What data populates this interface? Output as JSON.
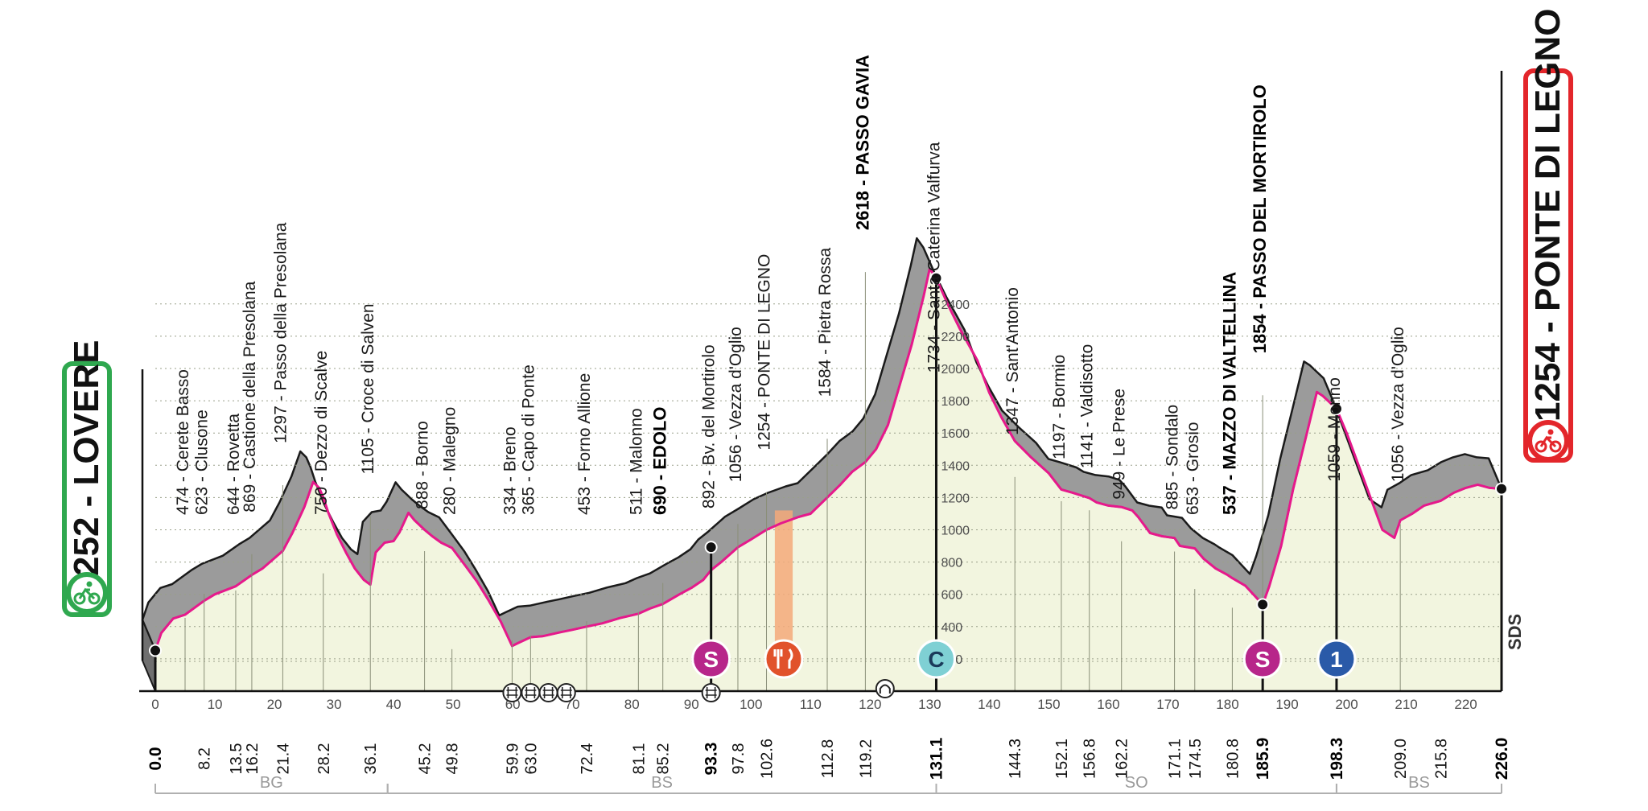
{
  "start": {
    "altitude": "252",
    "name": "LOVERE",
    "color": "#2fa84f"
  },
  "finish": {
    "altitude": "1254",
    "name": "PONTE DI LEGNO",
    "color": "#e3262b"
  },
  "colors": {
    "profile_top": "#9b9b9b",
    "terrain": "#f2f5df",
    "route_line": "#e6198c",
    "sprint": "#b7268a",
    "feed_zone": "#f5a97a",
    "feed_icon": "#e1522b",
    "climb_c": "#7fd0d4",
    "climb_1": "#2a5aa8"
  },
  "chart_data": {
    "type": "area",
    "x_unit": "km",
    "y_unit": "m",
    "xlim": [
      0,
      226
    ],
    "ylim": [
      0,
      2618
    ],
    "x_ticks": [
      0,
      10,
      20,
      30,
      40,
      50,
      60,
      70,
      80,
      90,
      100,
      110,
      120,
      130,
      140,
      150,
      160,
      170,
      180,
      190,
      200,
      210,
      220
    ],
    "y_ticks": [
      200,
      400,
      600,
      800,
      1000,
      1200,
      1400,
      1600,
      1800,
      2000,
      2200,
      2400
    ],
    "profile": [
      [
        0,
        252
      ],
      [
        1,
        360
      ],
      [
        3,
        450
      ],
      [
        5,
        474
      ],
      [
        8.2,
        560
      ],
      [
        10,
        600
      ],
      [
        13.5,
        650
      ],
      [
        16.2,
        720
      ],
      [
        18,
        760
      ],
      [
        21.4,
        869
      ],
      [
        23,
        980
      ],
      [
        25,
        1140
      ],
      [
        26.5,
        1297
      ],
      [
        27.5,
        1260
      ],
      [
        28.2,
        1200
      ],
      [
        29,
        1110
      ],
      [
        30.5,
        970
      ],
      [
        32,
        860
      ],
      [
        33.5,
        760
      ],
      [
        35,
        690
      ],
      [
        36.1,
        660
      ],
      [
        37,
        860
      ],
      [
        38.5,
        920
      ],
      [
        40,
        930
      ],
      [
        41,
        985
      ],
      [
        42.5,
        1105
      ],
      [
        43.5,
        1060
      ],
      [
        45.2,
        1000
      ],
      [
        46.5,
        960
      ],
      [
        48,
        920
      ],
      [
        49.8,
        888
      ],
      [
        52,
        780
      ],
      [
        54,
        680
      ],
      [
        56,
        560
      ],
      [
        58,
        430
      ],
      [
        59.9,
        280
      ],
      [
        61,
        300
      ],
      [
        63,
        334
      ],
      [
        65,
        340
      ],
      [
        68,
        365
      ],
      [
        70,
        380
      ],
      [
        72.4,
        400
      ],
      [
        75,
        420
      ],
      [
        78,
        453
      ],
      [
        81.1,
        480
      ],
      [
        83,
        511
      ],
      [
        85.2,
        540
      ],
      [
        88,
        600
      ],
      [
        90,
        640
      ],
      [
        92,
        690
      ],
      [
        93.3,
        750
      ],
      [
        95,
        800
      ],
      [
        97.8,
        892
      ],
      [
        100,
        940
      ],
      [
        102.6,
        1000
      ],
      [
        105,
        1040
      ],
      [
        108,
        1080
      ],
      [
        110,
        1100
      ],
      [
        112.8,
        1200
      ],
      [
        115,
        1280
      ],
      [
        117,
        1360
      ],
      [
        119.2,
        1420
      ],
      [
        121,
        1500
      ],
      [
        123,
        1650
      ],
      [
        125,
        1900
      ],
      [
        127,
        2150
      ],
      [
        129,
        2450
      ],
      [
        130,
        2618
      ],
      [
        131.1,
        2560
      ],
      [
        133,
        2400
      ],
      [
        135,
        2250
      ],
      [
        138,
        2050
      ],
      [
        140,
        1850
      ],
      [
        142,
        1700
      ],
      [
        144.3,
        1550
      ],
      [
        147,
        1450
      ],
      [
        150,
        1350
      ],
      [
        152.1,
        1250
      ],
      [
        154,
        1230
      ],
      [
        156.8,
        1197
      ],
      [
        158,
        1170
      ],
      [
        160,
        1150
      ],
      [
        162.2,
        1141
      ],
      [
        164,
        1120
      ],
      [
        165,
        1080
      ],
      [
        167,
        980
      ],
      [
        169,
        960
      ],
      [
        171.1,
        949
      ],
      [
        172,
        900
      ],
      [
        174.5,
        885
      ],
      [
        176,
        820
      ],
      [
        178,
        760
      ],
      [
        180,
        720
      ],
      [
        180.8,
        700
      ],
      [
        183,
        653
      ],
      [
        185.9,
        537
      ],
      [
        187,
        650
      ],
      [
        189,
        900
      ],
      [
        191,
        1250
      ],
      [
        193,
        1550
      ],
      [
        195,
        1854
      ],
      [
        196,
        1830
      ],
      [
        198.3,
        1750
      ],
      [
        200,
        1600
      ],
      [
        202,
        1400
      ],
      [
        204,
        1200
      ],
      [
        206,
        1000
      ],
      [
        208,
        950
      ],
      [
        209,
        1059
      ],
      [
        211,
        1100
      ],
      [
        213,
        1150
      ],
      [
        215.8,
        1180
      ],
      [
        218,
        1230
      ],
      [
        220,
        1260
      ],
      [
        222,
        1280
      ],
      [
        224,
        1260
      ],
      [
        226,
        1254
      ]
    ],
    "places": [
      {
        "km": 5,
        "alt": 474,
        "label": "474 - Cerete Basso",
        "bold": false
      },
      {
        "km": 8.2,
        "alt": 623,
        "label": "623 - Clusone",
        "bold": false
      },
      {
        "km": 13.5,
        "alt": 644,
        "label": "644 - Rovetta",
        "bold": false
      },
      {
        "km": 16.2,
        "alt": 869,
        "label": "869 - Castione della Presolana",
        "bold": false
      },
      {
        "km": 21.4,
        "alt": 1297,
        "label": "1297 - Passo della Presolana",
        "bold": false
      },
      {
        "km": 28.2,
        "alt": 750,
        "label": "750 - Dezzo di Scalve",
        "bold": false
      },
      {
        "km": 36.1,
        "alt": 1105,
        "label": "1105 - Croce di Salven",
        "bold": false
      },
      {
        "km": 45.2,
        "alt": 888,
        "label": "888 - Borno",
        "bold": false
      },
      {
        "km": 49.8,
        "alt": 280,
        "label": "280 - Malegno",
        "bold": false
      },
      {
        "km": 59.9,
        "alt": 334,
        "label": "334 - Breno",
        "bold": false
      },
      {
        "km": 63,
        "alt": 365,
        "label": "365 - Capo di Ponte",
        "bold": false
      },
      {
        "km": 72.4,
        "alt": 453,
        "label": "453 - Forno Allione",
        "bold": false
      },
      {
        "km": 81.1,
        "alt": 511,
        "label": "511 - Malonno",
        "bold": false
      },
      {
        "km": 85.2,
        "alt": 690,
        "label": "690 - EDOLO",
        "bold": true
      },
      {
        "km": 93.3,
        "alt": 892,
        "label": "892 - Bv. del Mortirolo",
        "bold": false
      },
      {
        "km": 97.8,
        "alt": 1056,
        "label": "1056 - Vezza d'Oglio",
        "bold": false
      },
      {
        "km": 102.6,
        "alt": 1254,
        "label": "1254 - PONTE DI LEGNO",
        "bold": false
      },
      {
        "km": 112.8,
        "alt": 1584,
        "label": "1584 - Pietra Rossa",
        "bold": false
      },
      {
        "km": 119.2,
        "alt": 2618,
        "label": "2618 - PASSO GAVIA",
        "bold": true
      },
      {
        "km": 131.1,
        "alt": 1734,
        "label": "1734 - Santa Caterina Valfurva",
        "bold": false
      },
      {
        "km": 144.3,
        "alt": 1347,
        "label": "1347 - Sant'Antonio",
        "bold": false
      },
      {
        "km": 152.1,
        "alt": 1197,
        "label": "1197 - Bormio",
        "bold": false
      },
      {
        "km": 156.8,
        "alt": 1141,
        "label": "1141 - Valdisotto",
        "bold": false
      },
      {
        "km": 162.2,
        "alt": 949,
        "label": "949 - Le Prese",
        "bold": false
      },
      {
        "km": 171.1,
        "alt": 885,
        "label": "885 - Sondalo",
        "bold": false
      },
      {
        "km": 174.5,
        "alt": 653,
        "label": "653 - Grosio",
        "bold": false
      },
      {
        "km": 180.8,
        "alt": 537,
        "label": "537 - MAZZO DI VALTELLINA",
        "bold": true
      },
      {
        "km": 185.9,
        "alt": 1854,
        "label": "1854 - PASSO DEL MORTIROLO",
        "bold": true
      },
      {
        "km": 198.3,
        "alt": 1059,
        "label": "1059 - Monno",
        "bold": false
      },
      {
        "km": 209.0,
        "alt": 1056,
        "label": "1056 - Vezza d'Oglio",
        "bold": false
      }
    ],
    "distance_labels": [
      {
        "km": 0.0,
        "text": "0.0",
        "bold": true
      },
      {
        "km": 8.2,
        "text": "8.2",
        "bold": false
      },
      {
        "km": 13.5,
        "text": "13.5",
        "bold": false
      },
      {
        "km": 16.2,
        "text": "16.2",
        "bold": false
      },
      {
        "km": 21.4,
        "text": "21.4",
        "bold": false
      },
      {
        "km": 28.2,
        "text": "28.2",
        "bold": false
      },
      {
        "km": 36.1,
        "text": "36.1",
        "bold": false
      },
      {
        "km": 45.2,
        "text": "45.2",
        "bold": false
      },
      {
        "km": 49.8,
        "text": "49.8",
        "bold": false
      },
      {
        "km": 59.9,
        "text": "59.9",
        "bold": false
      },
      {
        "km": 63.0,
        "text": "63.0",
        "bold": false
      },
      {
        "km": 72.4,
        "text": "72.4",
        "bold": false
      },
      {
        "km": 81.1,
        "text": "81.1",
        "bold": false
      },
      {
        "km": 85.2,
        "text": "85.2",
        "bold": false
      },
      {
        "km": 93.3,
        "text": "93.3",
        "bold": true
      },
      {
        "km": 97.8,
        "text": "97.8",
        "bold": false
      },
      {
        "km": 102.6,
        "text": "102.6",
        "bold": false
      },
      {
        "km": 112.8,
        "text": "112.8",
        "bold": false
      },
      {
        "km": 119.2,
        "text": "119.2",
        "bold": false
      },
      {
        "km": 131.1,
        "text": "131.1",
        "bold": true
      },
      {
        "km": 144.3,
        "text": "144.3",
        "bold": false
      },
      {
        "km": 152.1,
        "text": "152.1",
        "bold": false
      },
      {
        "km": 156.8,
        "text": "156.8",
        "bold": false
      },
      {
        "km": 162.2,
        "text": "162.2",
        "bold": false
      },
      {
        "km": 171.1,
        "text": "171.1",
        "bold": false
      },
      {
        "km": 174.5,
        "text": "174.5",
        "bold": false
      },
      {
        "km": 180.8,
        "text": "180.8",
        "bold": false
      },
      {
        "km": 185.9,
        "text": "185.9",
        "bold": true
      },
      {
        "km": 198.3,
        "text": "198.3",
        "bold": true
      },
      {
        "km": 209.0,
        "text": "209.0",
        "bold": false
      },
      {
        "km": 215.8,
        "text": "215.8",
        "bold": false
      },
      {
        "km": 226.0,
        "text": "226.0",
        "bold": true
      }
    ],
    "markers": [
      {
        "km": 0,
        "alt": 252
      },
      {
        "km": 93.3,
        "alt": 892
      },
      {
        "km": 131.1,
        "alt": 2560
      },
      {
        "km": 185.9,
        "alt": 537
      },
      {
        "km": 198.3,
        "alt": 1750
      },
      {
        "km": 226,
        "alt": 1254
      }
    ],
    "icons": [
      {
        "km": 93.3,
        "type": "sprint",
        "text": "S"
      },
      {
        "km": 105.5,
        "type": "feed",
        "text": ""
      },
      {
        "km": 131.1,
        "type": "climb-c",
        "text": "C"
      },
      {
        "km": 185.9,
        "type": "sprint",
        "text": "S"
      },
      {
        "km": 198.3,
        "type": "climb-1",
        "text": "1"
      }
    ],
    "feed_zone": [
      104,
      107
    ],
    "rail_crossings": [
      59.9,
      63.0,
      66.0,
      69.0,
      93.3
    ],
    "tunnel": [
      122.5
    ],
    "provinces": [
      {
        "label": "BG",
        "from": 0,
        "to": 39
      },
      {
        "label": "BS",
        "from": 39,
        "to": 131.1
      },
      {
        "label": "SO",
        "from": 131.1,
        "to": 198.3
      },
      {
        "label": "BS",
        "from": 198.3,
        "to": 226
      }
    ],
    "brand": "SDS"
  }
}
